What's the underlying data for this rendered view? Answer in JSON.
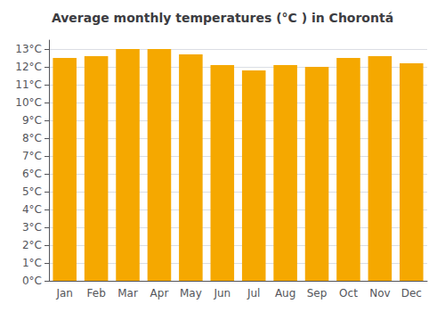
{
  "chart_data": {
    "type": "bar",
    "title": "Average monthly temperatures (°C ) in Chorontá",
    "categories": [
      "Jan",
      "Feb",
      "Mar",
      "Apr",
      "May",
      "Jun",
      "Jul",
      "Aug",
      "Sep",
      "Oct",
      "Nov",
      "Dec"
    ],
    "values": [
      12.5,
      12.6,
      13.0,
      13.0,
      12.7,
      12.1,
      11.8,
      12.1,
      12.0,
      12.5,
      12.6,
      12.2
    ],
    "color": "#F5A800",
    "ylim": [
      0,
      13.5
    ],
    "yticks": [
      {
        "value": 0,
        "label": "0°C"
      },
      {
        "value": 1,
        "label": "1°C"
      },
      {
        "value": 2,
        "label": "2°C"
      },
      {
        "value": 3,
        "label": "3°C"
      },
      {
        "value": 4,
        "label": "4°C"
      },
      {
        "value": 5,
        "label": "5°C"
      },
      {
        "value": 6,
        "label": "6°C"
      },
      {
        "value": 7,
        "label": "7°C"
      },
      {
        "value": 8,
        "label": "8°C"
      },
      {
        "value": 9,
        "label": "9°C"
      },
      {
        "value": 10,
        "label": "10°C"
      },
      {
        "value": 11,
        "label": "11°C"
      },
      {
        "value": 12,
        "label": "12°C"
      },
      {
        "value": 13,
        "label": "13°C"
      }
    ],
    "grid": true
  }
}
